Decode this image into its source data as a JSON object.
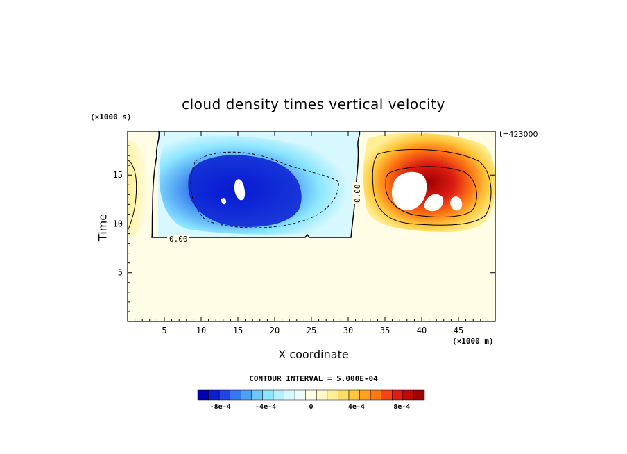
{
  "chart_data": {
    "type": "heatmap",
    "title": "cloud density times vertical velocity",
    "xlabel": "X coordinate",
    "ylabel": "Time",
    "x_unit": "(×1000 m)",
    "y_unit": "(×1000 s)",
    "annotation": "t=423000",
    "contour_interval_label": "CONTOUR INTERVAL = 5.000E-04",
    "contour_interval": 0.0005,
    "xlim": [
      0,
      50
    ],
    "ylim": [
      0,
      19.5
    ],
    "x_ticks": [
      5,
      10,
      15,
      20,
      25,
      30,
      35,
      40,
      45
    ],
    "y_ticks": [
      5,
      10,
      15
    ],
    "zero_contour_labels": [
      "0.00",
      "0.00"
    ],
    "colorbar": {
      "levels": [
        -0.001,
        -0.0009,
        -0.0008,
        -0.0007,
        -0.0006,
        -0.0005,
        -0.0004,
        -0.0003,
        -0.0002,
        -0.0001,
        0,
        0.0001,
        0.0002,
        0.0003,
        0.0004,
        0.0005,
        0.0006,
        0.0007,
        0.0008,
        0.0009,
        0.001
      ],
      "colors": [
        "#0000b4",
        "#0a1ed2",
        "#1e46e6",
        "#3278f0",
        "#50a0f5",
        "#6ec8fa",
        "#8ce6ff",
        "#b4f0ff",
        "#d7f8ff",
        "#f0fcfa",
        "#fffde6",
        "#fff8c8",
        "#fff096",
        "#ffdc64",
        "#ffc83c",
        "#ffa01e",
        "#ff7814",
        "#f04614",
        "#dc1e14",
        "#be0a0a",
        "#a00000"
      ],
      "tick_labels": [
        "-8e-4",
        "-4e-4",
        "0",
        "4e-4",
        "8e-4"
      ],
      "tick_values": [
        -0.0008,
        -0.0004,
        0,
        0.0004,
        0.0008
      ]
    },
    "regions": [
      {
        "name": "negative updraft core",
        "x_range": [
          3.7,
          31
        ],
        "y_range": [
          8.7,
          19.5
        ],
        "min_value": -0.001
      },
      {
        "name": "positive core",
        "x_range": [
          32,
          50
        ],
        "y_range": [
          10.2,
          19.3
        ],
        "max_value": 0.001
      },
      {
        "name": "left edge weak positive",
        "x_range": [
          0,
          3
        ],
        "y_range": [
          9.5,
          19.5
        ],
        "max_value": 0.0004
      }
    ],
    "background_value": 0
  }
}
